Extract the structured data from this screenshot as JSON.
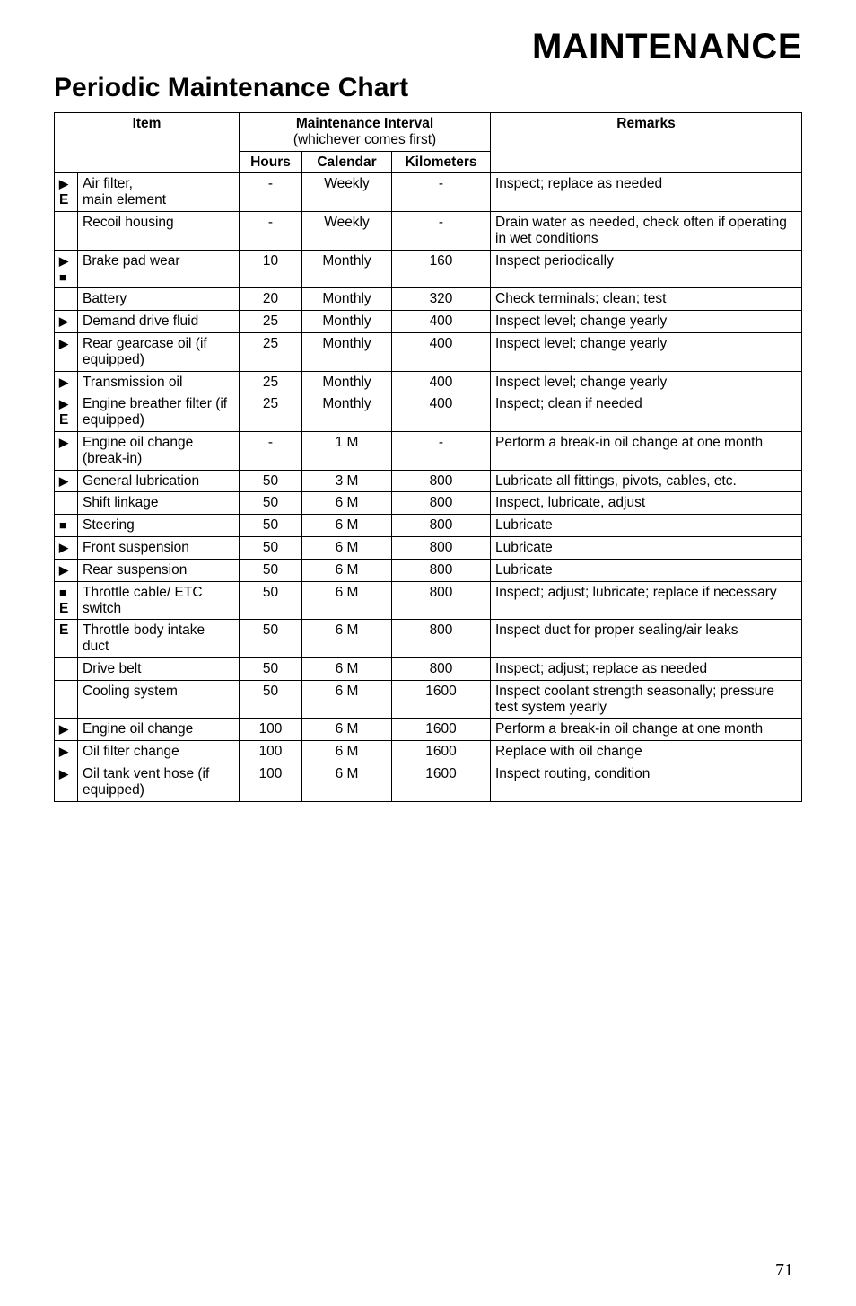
{
  "title_main": "MAINTENANCE",
  "title_sub": "Periodic Maintenance Chart",
  "header": {
    "item": "Item",
    "interval": "Maintenance Interval",
    "interval_sub": "(whichever comes first)",
    "remarks": "Remarks",
    "hours": "Hours",
    "calendar": "Calendar",
    "kilometers": "Kilometers"
  },
  "rows": [
    {
      "sym": "▶\nE",
      "item": "Air filter,\nmain element",
      "hours": "-",
      "cal": "Weekly",
      "km": "-",
      "rem": "Inspect; replace as needed"
    },
    {
      "sym": "",
      "item": "Recoil housing",
      "hours": "-",
      "cal": "Weekly",
      "km": "-",
      "rem": "Drain water as needed, check often if operating in wet conditions"
    },
    {
      "sym": "▶\n■",
      "item": "Brake pad wear",
      "hours": "10",
      "cal": "Monthly",
      "km": "160",
      "rem": "Inspect periodically"
    },
    {
      "sym": "",
      "item": "Battery",
      "hours": "20",
      "cal": "Monthly",
      "km": "320",
      "rem": "Check terminals; clean; test"
    },
    {
      "sym": "▶",
      "item": "Demand drive fluid",
      "hours": "25",
      "cal": "Monthly",
      "km": "400",
      "rem": "Inspect level; change yearly"
    },
    {
      "sym": "▶",
      "item": "Rear gearcase oil (if equipped)",
      "hours": "25",
      "cal": "Monthly",
      "km": "400",
      "rem": "Inspect level; change yearly"
    },
    {
      "sym": "▶",
      "item": "Transmission oil",
      "hours": "25",
      "cal": "Monthly",
      "km": "400",
      "rem": "Inspect level; change yearly"
    },
    {
      "sym": "▶\nE",
      "item": "Engine breather filter (if equipped)",
      "hours": "25",
      "cal": "Monthly",
      "km": "400",
      "rem": "Inspect; clean if needed"
    },
    {
      "sym": "▶",
      "item": "Engine oil change (break-in)",
      "hours": "-",
      "cal": "1 M",
      "km": "-",
      "rem": "Perform a break-in oil change at one month"
    },
    {
      "sym": "▶",
      "item": "General lubrication",
      "hours": "50",
      "cal": "3 M",
      "km": "800",
      "rem": "Lubricate all fittings, pivots, cables, etc."
    },
    {
      "sym": "",
      "item": "Shift linkage",
      "hours": "50",
      "cal": "6 M",
      "km": "800",
      "rem": "Inspect, lubricate, adjust"
    },
    {
      "sym": "■",
      "item": "Steering",
      "hours": "50",
      "cal": "6 M",
      "km": "800",
      "rem": "Lubricate"
    },
    {
      "sym": "▶",
      "item": "Front suspension",
      "hours": "50",
      "cal": "6 M",
      "km": "800",
      "rem": "Lubricate"
    },
    {
      "sym": "▶",
      "item": "Rear suspension",
      "hours": "50",
      "cal": "6 M",
      "km": "800",
      "rem": "Lubricate"
    },
    {
      "sym": "■\nE",
      "item": "Throttle cable/ ETC switch",
      "hours": "50",
      "cal": "6 M",
      "km": "800",
      "rem": "Inspect; adjust; lubricate; replace if necessary"
    },
    {
      "sym": "E",
      "item": "Throttle body intake duct",
      "hours": "50",
      "cal": "6 M",
      "km": "800",
      "rem": "Inspect duct for proper sealing/air leaks"
    },
    {
      "sym": "",
      "item": "Drive belt",
      "hours": "50",
      "cal": "6 M",
      "km": "800",
      "rem": "Inspect; adjust; replace as needed"
    },
    {
      "sym": "",
      "item": "Cooling system",
      "hours": "50",
      "cal": "6 M",
      "km": "1600",
      "rem": "Inspect coolant strength seasonally; pressure test system yearly"
    },
    {
      "sym": "▶",
      "item": "Engine oil change",
      "hours": "100",
      "cal": "6 M",
      "km": "1600",
      "rem": "Perform a break-in oil change at one month"
    },
    {
      "sym": "▶",
      "item": "Oil filter change",
      "hours": "100",
      "cal": "6 M",
      "km": "1600",
      "rem": "Replace with oil change"
    },
    {
      "sym": "▶",
      "item": "Oil tank vent hose (if equipped)",
      "hours": "100",
      "cal": "6 M",
      "km": "1600",
      "rem": "Inspect routing, condition"
    }
  ],
  "page_number": "71",
  "colors": {
    "text": "#000000",
    "background": "#ffffff",
    "border": "#000000"
  },
  "fonts": {
    "title_size_pt": 40,
    "subtitle_size_pt": 30,
    "body_size_pt": 15.5,
    "page_num_size_pt": 20
  }
}
